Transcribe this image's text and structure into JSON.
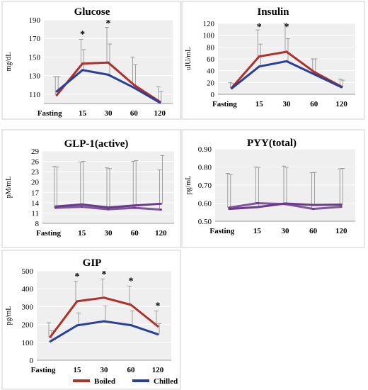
{
  "colors": {
    "boiled": "#b0302a",
    "chilled": "#2a3f9a",
    "overlap": "#6b3a8c"
  },
  "legend": [
    {
      "name": "Boiled",
      "color": "#b0302a"
    },
    {
      "name": "Chilled",
      "color": "#2a3f9a"
    }
  ],
  "chart_data": [
    {
      "type": "line",
      "title": "Glucose",
      "ylabel": "mg/dL",
      "categories": [
        "Fasting",
        "15",
        "30",
        "60",
        "120"
      ],
      "yticks": [
        "110",
        "130",
        "150",
        "170",
        "190"
      ],
      "ylim": [
        100,
        190
      ],
      "series": [
        {
          "name": "Boiled",
          "values": [
            109,
            143,
            144,
            120,
            102
          ],
          "error": [
            20,
            26,
            38,
            30,
            16
          ]
        },
        {
          "name": "Chilled",
          "values": [
            113,
            136,
            131,
            117,
            101
          ],
          "error": [
            16,
            22,
            33,
            25,
            12
          ]
        }
      ],
      "significant": [
        "",
        "*",
        "*",
        "",
        ""
      ]
    },
    {
      "type": "line",
      "title": "Insulin",
      "ylabel": "uIU/mL",
      "categories": [
        "Fasting",
        "15",
        "30",
        "60",
        "120"
      ],
      "yticks": [
        "0",
        "20",
        "40",
        "60",
        "80",
        "100",
        "120"
      ],
      "ylim": [
        0,
        120
      ],
      "series": [
        {
          "name": "Boiled",
          "values": [
            11,
            64,
            72,
            38,
            13
          ],
          "error": [
            9,
            45,
            49,
            22,
            13
          ]
        },
        {
          "name": "Chilled",
          "values": [
            10,
            47,
            56,
            34,
            12
          ],
          "error": [
            8,
            38,
            38,
            26,
            12
          ]
        }
      ],
      "significant": [
        "",
        "*",
        "*",
        "",
        ""
      ]
    },
    {
      "type": "line",
      "title": "GLP-1(active)",
      "ylabel": "pM/mL",
      "categories": [
        "Fasting",
        "15",
        "30",
        "60",
        "120"
      ],
      "yticks": [
        "8",
        "11",
        "14",
        "17",
        "20",
        "23",
        "26",
        "29"
      ],
      "ylim": [
        8,
        29
      ],
      "series": [
        {
          "name": "Boiled",
          "values": [
            12.5,
            12.8,
            12.1,
            12.5,
            12.0
          ],
          "error": [
            12,
            13,
            12,
            13.5,
            11.5
          ]
        },
        {
          "name": "Chilled",
          "values": [
            12.9,
            13.5,
            12.6,
            13.2,
            13.7
          ],
          "error": [
            11.5,
            12.5,
            11.3,
            13,
            14
          ]
        }
      ],
      "significant": [
        "",
        "",
        "",
        "",
        ""
      ]
    },
    {
      "type": "line",
      "title": "PYY(total)",
      "ylabel": "pg/mL",
      "categories": [
        "Fasting",
        "15",
        "30",
        "60",
        "120"
      ],
      "yticks": [
        "0.50",
        "0.60",
        "0.70",
        "0.80",
        "0.90"
      ],
      "ylim": [
        0.5,
        0.9
      ],
      "series": [
        {
          "name": "Boiled",
          "values": [
            0.575,
            0.6,
            0.595,
            0.568,
            0.58
          ],
          "error": [
            0.19,
            0.2,
            0.21,
            0.2,
            0.21
          ]
        },
        {
          "name": "Chilled",
          "values": [
            0.568,
            0.578,
            0.598,
            0.59,
            0.592
          ],
          "error": [
            0.19,
            0.22,
            0.2,
            0.18,
            0.2
          ]
        }
      ],
      "significant": [
        "",
        "",
        "",
        "",
        ""
      ]
    },
    {
      "type": "line",
      "title": "GIP",
      "ylabel": "pg/mL",
      "categories": [
        "Fasting",
        "15",
        "30",
        "60",
        "120"
      ],
      "yticks": [
        "0",
        "100",
        "200",
        "300",
        "400",
        "500"
      ],
      "ylim": [
        0,
        500
      ],
      "series": [
        {
          "name": "Boiled",
          "values": [
            130,
            330,
            350,
            310,
            190
          ],
          "error": [
            80,
            110,
            105,
            105,
            85
          ]
        },
        {
          "name": "Chilled",
          "values": [
            105,
            195,
            218,
            196,
            145
          ],
          "error": [
            60,
            70,
            85,
            80,
            60
          ]
        }
      ],
      "significant": [
        "",
        "*",
        "*",
        "*",
        "*"
      ]
    }
  ]
}
